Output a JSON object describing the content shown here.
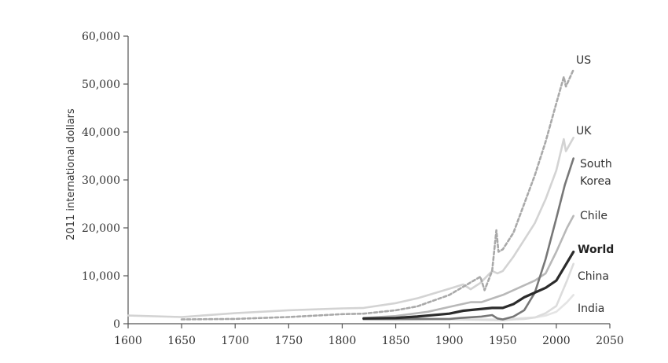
{
  "chart_data": {
    "type": "line",
    "title": "",
    "xlabel": "",
    "ylabel": "2011 international dollars",
    "xlim": [
      1600,
      2050
    ],
    "ylim": [
      0,
      60000
    ],
    "x_ticks": [
      "1600",
      "1650",
      "1700",
      "1750",
      "1800",
      "1850",
      "1900",
      "1950",
      "2000",
      "2050"
    ],
    "y_ticks": [
      "0",
      "10,000",
      "20,000",
      "30,000",
      "40,000",
      "50,000",
      "60,000"
    ],
    "grid": false,
    "legend": "direct labels at line ends",
    "series": [
      {
        "name": "US",
        "color": "#a9a9a9",
        "dash": "dashed",
        "x": [
          1650,
          1700,
          1750,
          1800,
          1820,
          1850,
          1870,
          1900,
          1913,
          1929,
          1933,
          1940,
          1944,
          1946,
          1950,
          1960,
          1970,
          1980,
          1990,
          2000,
          2007,
          2009,
          2016
        ],
        "y": [
          900,
          1000,
          1400,
          2000,
          2100,
          2800,
          3600,
          6000,
          7700,
          9800,
          7000,
          11000,
          19500,
          15000,
          15500,
          19000,
          25000,
          31000,
          38000,
          46000,
          51500,
          49500,
          53000
        ]
      },
      {
        "name": "UK",
        "color": "#d3d3d3",
        "dash": "solid",
        "x": [
          1600,
          1650,
          1700,
          1750,
          1800,
          1820,
          1850,
          1870,
          1900,
          1913,
          1920,
          1929,
          1940,
          1945,
          1950,
          1960,
          1970,
          1980,
          1990,
          2000,
          2007,
          2009,
          2016
        ],
        "y": [
          1700,
          1400,
          2200,
          2800,
          3200,
          3300,
          4300,
          5300,
          7300,
          8200,
          7200,
          8500,
          11000,
          10500,
          11000,
          14000,
          17500,
          21000,
          26000,
          32000,
          38500,
          36000,
          38800
        ]
      },
      {
        "name": "South Korea",
        "color": "#777777",
        "dash": "solid",
        "x": [
          1820,
          1850,
          1900,
          1910,
          1930,
          1940,
          1945,
          1950,
          1955,
          1960,
          1970,
          1980,
          1990,
          2000,
          2008,
          2016
        ],
        "y": [
          1000,
          1000,
          1000,
          1200,
          1500,
          1800,
          1100,
          900,
          1200,
          1500,
          2800,
          6500,
          13500,
          22000,
          29000,
          34500
        ]
      },
      {
        "name": "Chile",
        "color": "#b8b8b8",
        "dash": "solid",
        "x": [
          1820,
          1850,
          1880,
          1900,
          1920,
          1930,
          1950,
          1960,
          1970,
          1980,
          1990,
          2000,
          2010,
          2016
        ],
        "y": [
          1200,
          1600,
          2500,
          3500,
          4500,
          4500,
          6000,
          7000,
          8000,
          9000,
          10500,
          15000,
          20000,
          22500
        ]
      },
      {
        "name": "World",
        "color": "#2b2b2b",
        "dash": "solid",
        "x": [
          1820,
          1850,
          1870,
          1900,
          1913,
          1940,
          1950,
          1960,
          1970,
          1980,
          1990,
          2000,
          2008,
          2016
        ],
        "y": [
          1100,
          1200,
          1500,
          2100,
          2700,
          3300,
          3300,
          4100,
          5500,
          6500,
          7500,
          9000,
          12000,
          15000
        ]
      },
      {
        "name": "China",
        "color": "#dcdcdc",
        "dash": "solid",
        "x": [
          1820,
          1850,
          1900,
          1950,
          1960,
          1970,
          1980,
          1990,
          2000,
          2010,
          2016
        ],
        "y": [
          900,
          800,
          900,
          700,
          900,
          1000,
          1300,
          2200,
          3700,
          9000,
          12500
        ]
      },
      {
        "name": "India",
        "color": "#e4e4e4",
        "dash": "solid",
        "x": [
          1820,
          1850,
          1900,
          1950,
          1960,
          1970,
          1980,
          1990,
          2000,
          2010,
          2016
        ],
        "y": [
          800,
          800,
          900,
          900,
          1000,
          1200,
          1300,
          1700,
          2500,
          4500,
          6000
        ]
      }
    ]
  }
}
